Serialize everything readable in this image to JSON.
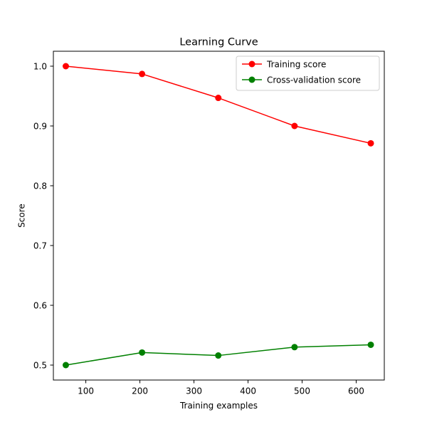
{
  "chart_data": {
    "type": "line",
    "title": "Learning Curve",
    "xlabel": "Training examples",
    "ylabel": "Score",
    "x": [
      63,
      204,
      345,
      486,
      627
    ],
    "xlim": [
      40,
      652
    ],
    "ylim": [
      0.475,
      1.025
    ],
    "xticks": [
      100,
      200,
      300,
      400,
      500,
      600
    ],
    "yticks": [
      0.5,
      0.6,
      0.7,
      0.8,
      0.9,
      1.0
    ],
    "xtick_labels": [
      "100",
      "200",
      "300",
      "400",
      "500",
      "600"
    ],
    "ytick_labels": [
      "0.5",
      "0.6",
      "0.7",
      "0.8",
      "0.9",
      "1.0"
    ],
    "grid": false,
    "legend": "upper right",
    "series": [
      {
        "name": "Training score",
        "color": "#ff0000",
        "marker": "circle",
        "values": [
          1.0,
          0.987,
          0.947,
          0.9,
          0.871
        ]
      },
      {
        "name": "Cross-validation score",
        "color": "#008000",
        "marker": "circle",
        "values": [
          0.5,
          0.521,
          0.516,
          0.53,
          0.534
        ]
      }
    ]
  }
}
